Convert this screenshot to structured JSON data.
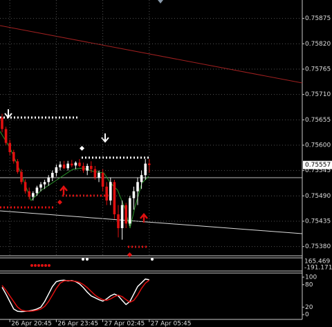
{
  "chart_data": [
    {
      "type": "candlestick",
      "categories": [
        null,
        null,
        "26 Apr 20:45",
        null,
        null,
        null,
        null,
        null,
        null,
        null,
        null,
        null,
        null,
        null,
        "26 Apr 23:45",
        null,
        null,
        null,
        null,
        null,
        null,
        null,
        null,
        null,
        null,
        null,
        "27 Apr 02:45",
        null,
        null,
        null,
        null,
        null,
        null,
        null,
        null,
        null,
        null,
        null,
        "27 Apr 05:45"
      ],
      "open": [
        0.7566,
        0.75635,
        0.75605,
        0.75585,
        0.75565,
        0.75542,
        0.7552,
        0.755,
        0.75488,
        0.75496,
        0.75508,
        0.75515,
        0.7552,
        0.7553,
        0.7554,
        0.75552,
        0.75558,
        0.7555,
        0.7556,
        0.75556,
        0.75562,
        0.75555,
        0.75545,
        0.75555,
        0.75548,
        0.7553,
        0.7554,
        0.7551,
        0.7548,
        0.7552,
        0.7545,
        0.7542,
        0.7547,
        0.7543,
        0.75485,
        0.755,
        0.7552,
        0.75535,
        0.7556
      ],
      "high": [
        0.75668,
        0.7564,
        0.75612,
        0.7559,
        0.7557,
        0.75548,
        0.75526,
        0.75508,
        0.755,
        0.75512,
        0.7552,
        0.75525,
        0.75535,
        0.75545,
        0.75558,
        0.75565,
        0.75566,
        0.75566,
        0.75568,
        0.75565,
        0.7557,
        0.75562,
        0.7556,
        0.75565,
        0.75555,
        0.75545,
        0.75548,
        0.7552,
        0.7553,
        0.75525,
        0.7547,
        0.7548,
        0.75475,
        0.7549,
        0.7551,
        0.7553,
        0.75545,
        0.7557,
        0.7557
      ],
      "low": [
        0.75628,
        0.756,
        0.75578,
        0.7556,
        0.75538,
        0.75515,
        0.75495,
        0.75482,
        0.7548,
        0.7549,
        0.755,
        0.75505,
        0.75512,
        0.75522,
        0.75532,
        0.75545,
        0.75548,
        0.75545,
        0.75552,
        0.75548,
        0.75552,
        0.7554,
        0.75535,
        0.7554,
        0.75525,
        0.7552,
        0.755,
        0.7547,
        0.7547,
        0.7544,
        0.754,
        0.75395,
        0.7542,
        0.75425,
        0.7546,
        0.7547,
        0.75505,
        0.75525,
        0.7554
      ],
      "close": [
        0.75635,
        0.75605,
        0.75585,
        0.75565,
        0.75542,
        0.7552,
        0.755,
        0.75488,
        0.75496,
        0.75508,
        0.75515,
        0.7552,
        0.7553,
        0.7554,
        0.75552,
        0.75558,
        0.7555,
        0.7556,
        0.75556,
        0.75562,
        0.75555,
        0.75545,
        0.75555,
        0.75548,
        0.7553,
        0.7554,
        0.7551,
        0.7548,
        0.7552,
        0.7545,
        0.7542,
        0.7547,
        0.7543,
        0.75485,
        0.755,
        0.7552,
        0.75535,
        0.7556,
        0.75557
      ],
      "up_color": "#ffffff",
      "down_color": "#e01010",
      "last_price": 0.75557,
      "ylim": [
        0.7536,
        0.75915
      ],
      "yticks": [
        0.75875,
        {
          "value": 0.7582,
          "label": "0.75820"
        },
        0.75765,
        {
          "value": 0.7571,
          "label": "0.75710"
        },
        0.75655,
        {
          "value": 0.756,
          "label": "0.75600"
        },
        0.75545,
        {
          "value": 0.7549,
          "label": "0.75490"
        },
        0.75435,
        {
          "value": 0.7538,
          "label": "0.75380"
        }
      ],
      "grid": true
    },
    {
      "type": "line",
      "series": [
        {
          "color": "#ffffff",
          "values": [
            73,
            55,
            35,
            15,
            9,
            8,
            9,
            10,
            12,
            15,
            20,
            35,
            55,
            75,
            88,
            91,
            92,
            90,
            91,
            88,
            82,
            72,
            60,
            50,
            45,
            40,
            36,
            42,
            50,
            55,
            50,
            38,
            27,
            35,
            55,
            75,
            85,
            95,
            93
          ]
        },
        {
          "color": "#e01010",
          "values": [
            78,
            65,
            50,
            35,
            20,
            12,
            10,
            9,
            10,
            12,
            15,
            22,
            35,
            52,
            70,
            84,
            90,
            91,
            90,
            89,
            86,
            80,
            72,
            62,
            52,
            45,
            40,
            38,
            42,
            48,
            52,
            48,
            40,
            33,
            38,
            52,
            70,
            84,
            92
          ]
        }
      ],
      "ylim": [
        -12.7,
        110.9
      ],
      "yticks": [
        100,
        80,
        20,
        0
      ]
    }
  ],
  "indicator_window": {
    "labels": [
      "165.469",
      "-191.171"
    ]
  }
}
